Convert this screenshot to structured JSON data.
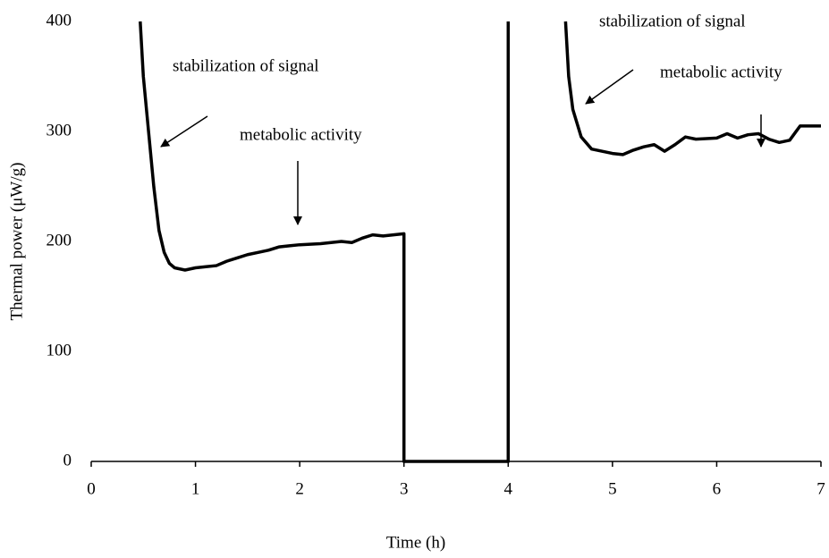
{
  "chart_data": {
    "type": "line",
    "x_label": "Time (h)",
    "y_label": "Thermal power (μW/g)",
    "x": [
      0.47,
      0.5,
      0.55,
      0.6,
      0.65,
      0.7,
      0.75,
      0.8,
      0.9,
      1,
      1.1,
      1.2,
      1.3,
      1.4,
      1.5,
      1.6,
      1.7,
      1.8,
      1.9,
      2,
      2.2,
      2.4,
      2.5,
      2.6,
      2.7,
      2.8,
      2.9,
      3,
      3,
      3.5,
      4,
      4,
      4.3,
      4.55,
      4.58,
      4.62,
      4.7,
      4.8,
      5,
      5.1,
      5.2,
      5.3,
      5.4,
      5.5,
      5.6,
      5.7,
      5.8,
      6,
      6.1,
      6.2,
      6.3,
      6.4,
      6.5,
      6.6,
      6.7,
      6.8,
      6.9,
      7
    ],
    "series": [
      {
        "name": "Thermal power",
        "color": "#000000",
        "values": [
          400,
          350,
          300,
          250,
          210,
          190,
          180,
          176,
          174,
          176,
          177,
          178,
          182,
          185,
          188,
          190,
          192,
          195,
          196,
          197,
          198,
          200,
          199,
          203,
          206,
          205,
          206,
          207,
          0,
          0,
          0,
          400,
          null,
          400,
          350,
          320,
          295,
          284,
          280,
          279,
          283,
          286,
          288,
          282,
          288,
          295,
          293,
          294,
          298,
          294,
          297,
          298,
          293,
          290,
          292,
          305,
          305,
          305
        ]
      }
    ],
    "xlim": [
      0,
      7
    ],
    "xticks": [
      0,
      1,
      2,
      3,
      4,
      5,
      6,
      7
    ],
    "ylim": [
      0,
      400
    ],
    "yticks": [
      0,
      100,
      200,
      300,
      400
    ],
    "grid": false,
    "annotations": [
      "stabilization of signal",
      "metabolic activity",
      "stabilization of signal",
      "metabolic activity"
    ]
  }
}
